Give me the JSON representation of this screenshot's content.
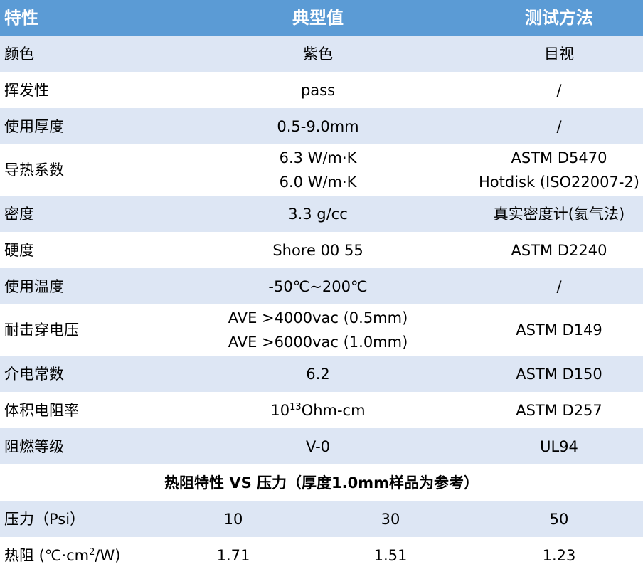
{
  "header": {
    "property": "特性",
    "typical": "典型值",
    "method": "测试方法"
  },
  "rows": [
    {
      "property": "颜色",
      "value": "紫色",
      "method": "目视"
    },
    {
      "property": "挥发性",
      "value": "pass",
      "method": "/"
    },
    {
      "property": "使用厚度",
      "value": "0.5-9.0mm",
      "method": "/"
    },
    {
      "property": "导热系数",
      "value_lines": [
        "6.3 W/m·K",
        "6.0 W/m·K"
      ],
      "method_lines": [
        "ASTM D5470",
        "Hotdisk (ISO22007-2)"
      ]
    },
    {
      "property": "密度",
      "value": "3.3 g/cc",
      "method": "真实密度计(氦气法)"
    },
    {
      "property": "硬度",
      "value": "Shore 00 55",
      "method": "ASTM D2240"
    },
    {
      "property": "使用温度",
      "value": "-50℃~200℃",
      "method": "/"
    },
    {
      "property": "耐击穿电压",
      "value_lines": [
        "AVE >4000vac (0.5mm)",
        "AVE >6000vac (1.0mm)"
      ],
      "method": "ASTM D149"
    },
    {
      "property": "介电常数",
      "value": "6.2",
      "method": "ASTM D150"
    },
    {
      "property": "体积电阻率",
      "value_base": "10",
      "value_exp": "13",
      "value_unit": "Ohm-cm",
      "method": "ASTM D257"
    },
    {
      "property": "阻燃等级",
      "value": "V-0",
      "method": "UL94"
    }
  ],
  "section_title": "热阻特性 VS 压力（厚度1.0mm样品为参考）",
  "pressure_row": {
    "label": "压力（Psi）",
    "values": [
      "10",
      "30",
      "50"
    ]
  },
  "resistance_row": {
    "label_prefix": "热阻 (℃·cm",
    "label_exp": "2",
    "label_suffix": "/W)",
    "values": [
      "1.71",
      "1.51",
      "1.23"
    ]
  },
  "colors": {
    "header_bg": "#5b9bd5",
    "row_alt_bg": "#dde6f4",
    "row_bg": "#ffffff"
  }
}
